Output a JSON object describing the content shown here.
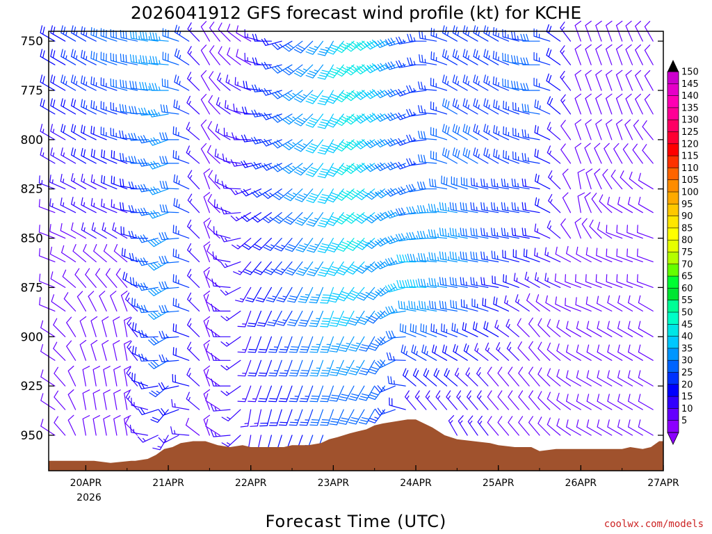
{
  "chart_data": {
    "type": "wind-barb-profile",
    "title": "2026041912 GFS forecast wind profile (kt) for KCHE",
    "xlabel": "Forecast Time (UTC)",
    "credit": "coolwx.com/models",
    "y_axis": {
      "ticks": [
        "750",
        "775",
        "800",
        "825",
        "850",
        "875",
        "900",
        "925",
        "950"
      ],
      "range_hpa": [
        745,
        968
      ]
    },
    "x_axis": {
      "ticks": [
        "20APR",
        "21APR",
        "22APR",
        "23APR",
        "24APR",
        "25APR",
        "26APR",
        "27APR"
      ],
      "year_label": "2026",
      "range_days": [
        19.55,
        27.0
      ]
    },
    "colorbar": {
      "levels": [
        "150",
        "145",
        "140",
        "135",
        "130",
        "125",
        "120",
        "115",
        "110",
        "105",
        "100",
        "95",
        "90",
        "85",
        "80",
        "75",
        "70",
        "65",
        "60",
        "55",
        "50",
        "45",
        "40",
        "35",
        "30",
        "25",
        "20",
        "15",
        "10",
        "5"
      ],
      "colors": [
        "#cc00cc",
        "#e600c8",
        "#ff00b4",
        "#ff0096",
        "#ff0064",
        "#ff0032",
        "#ff0000",
        "#ff3200",
        "#ff6400",
        "#ff8c00",
        "#ffaa00",
        "#ffc800",
        "#ffe600",
        "#ffff00",
        "#e6ff00",
        "#b4ff00",
        "#64ff00",
        "#00ff32",
        "#00e632",
        "#00ff96",
        "#00ffc8",
        "#00e6e6",
        "#00c8ff",
        "#0096ff",
        "#0064ff",
        "#0032ff",
        "#0000ff",
        "#3200ff",
        "#6400ff",
        "#8c00ff"
      ]
    },
    "terrain": {
      "color": "#a0522d",
      "profile": [
        [
          19.55,
          963
        ],
        [
          19.8,
          963
        ],
        [
          20.1,
          963
        ],
        [
          20.3,
          964
        ],
        [
          20.55,
          963
        ],
        [
          20.6,
          963
        ],
        [
          20.75,
          962
        ],
        [
          20.85,
          960
        ],
        [
          20.95,
          957
        ],
        [
          21.05,
          956
        ],
        [
          21.15,
          954
        ],
        [
          21.3,
          953
        ],
        [
          21.45,
          953
        ],
        [
          21.6,
          955
        ],
        [
          21.75,
          956
        ],
        [
          21.9,
          955
        ],
        [
          22.0,
          956
        ],
        [
          22.2,
          956
        ],
        [
          22.4,
          956
        ],
        [
          22.5,
          955
        ],
        [
          22.7,
          955
        ],
        [
          22.85,
          954
        ],
        [
          22.95,
          952
        ],
        [
          23.05,
          951
        ],
        [
          23.2,
          949
        ],
        [
          23.3,
          948
        ],
        [
          23.4,
          947
        ],
        [
          23.5,
          945
        ],
        [
          23.6,
          944
        ],
        [
          23.75,
          943
        ],
        [
          23.9,
          942
        ],
        [
          24.0,
          942
        ],
        [
          24.1,
          944
        ],
        [
          24.2,
          946
        ],
        [
          24.35,
          950
        ],
        [
          24.5,
          952
        ],
        [
          24.7,
          953
        ],
        [
          24.9,
          954
        ],
        [
          25.0,
          955
        ],
        [
          25.2,
          956
        ],
        [
          25.4,
          956
        ],
        [
          25.5,
          958
        ],
        [
          25.7,
          957
        ],
        [
          25.9,
          957
        ],
        [
          26.1,
          957
        ],
        [
          26.3,
          957
        ],
        [
          26.5,
          957
        ],
        [
          26.6,
          956
        ],
        [
          26.75,
          957
        ],
        [
          26.85,
          956
        ],
        [
          26.95,
          953
        ],
        [
          27.0,
          953
        ]
      ]
    },
    "wind": {
      "pressure_levels": [
        750,
        762,
        775,
        787,
        800,
        812,
        825,
        837,
        850,
        862,
        875,
        887,
        900,
        912,
        925,
        937,
        950
      ],
      "anchors": [
        {
          "t": 19.6,
          "dir": [
            300,
            300,
            300,
            300,
            300,
            300,
            290,
            290,
            290,
            290,
            290,
            290,
            300,
            300,
            300,
            300,
            300
          ],
          "spd": [
            20,
            20,
            20,
            18,
            15,
            15,
            15,
            12,
            12,
            12,
            12,
            12,
            12,
            10,
            10,
            10,
            10
          ]
        },
        {
          "t": 20.0,
          "dir": [
            300,
            300,
            300,
            300,
            300,
            300,
            300,
            300,
            300,
            310,
            320,
            330,
            340,
            340,
            350,
            350,
            350
          ],
          "spd": [
            25,
            25,
            25,
            22,
            20,
            18,
            16,
            15,
            12,
            12,
            12,
            12,
            12,
            12,
            10,
            10,
            10
          ]
        },
        {
          "t": 20.5,
          "dir": [
            285,
            285,
            285,
            285,
            285,
            290,
            290,
            290,
            300,
            310,
            320,
            340,
            350,
            350,
            350,
            350,
            350
          ],
          "spd": [
            30,
            30,
            28,
            26,
            24,
            20,
            18,
            16,
            15,
            12,
            12,
            10,
            10,
            10,
            10,
            10,
            10
          ]
        },
        {
          "t": 21.0,
          "dir": [
            275,
            275,
            270,
            260,
            250,
            250,
            250,
            250,
            240,
            240,
            240,
            240,
            240,
            240,
            230,
            220,
            210
          ],
          "spd": [
            35,
            35,
            35,
            35,
            35,
            35,
            35,
            35,
            35,
            35,
            35,
            35,
            30,
            30,
            25,
            20,
            15
          ]
        },
        {
          "t": 21.5,
          "dir": [
            330,
            330,
            330,
            330,
            330,
            330,
            340,
            340,
            340,
            340,
            340,
            340,
            340,
            340,
            340,
            340,
            340
          ],
          "spd": [
            10,
            10,
            10,
            10,
            10,
            10,
            10,
            10,
            10,
            10,
            10,
            10,
            10,
            10,
            10,
            10,
            10
          ]
        },
        {
          "t": 22.0,
          "dir": [
            300,
            300,
            290,
            280,
            270,
            260,
            250,
            240,
            230,
            220,
            210,
            200,
            200,
            200,
            200,
            190,
            190
          ],
          "spd": [
            10,
            12,
            15,
            15,
            15,
            15,
            15,
            15,
            15,
            15,
            15,
            15,
            15,
            15,
            15,
            15,
            15
          ]
        },
        {
          "t": 22.5,
          "dir": [
            240,
            240,
            240,
            240,
            240,
            240,
            230,
            230,
            220,
            220,
            210,
            210,
            200,
            200,
            200,
            200,
            200
          ],
          "spd": [
            25,
            28,
            30,
            30,
            30,
            30,
            30,
            28,
            26,
            25,
            25,
            25,
            25,
            25,
            22,
            20,
            20
          ]
        },
        {
          "t": 23.0,
          "dir": [
            210,
            210,
            210,
            210,
            210,
            210,
            210,
            210,
            210,
            210,
            200,
            200,
            200,
            200,
            200,
            200,
            200
          ],
          "spd": [
            35,
            40,
            40,
            40,
            40,
            40,
            40,
            40,
            40,
            40,
            40,
            38,
            36,
            35,
            32,
            30,
            28
          ]
        },
        {
          "t": 23.3,
          "dir": [
            230,
            230,
            230,
            230,
            230,
            230,
            230,
            230,
            220,
            220,
            220,
            210,
            210,
            210,
            210,
            210,
            210
          ],
          "spd": [
            48,
            48,
            46,
            45,
            45,
            45,
            45,
            45,
            45,
            42,
            40,
            38,
            36,
            34,
            32,
            30,
            30
          ]
        },
        {
          "t": 23.6,
          "dir": [
            240,
            240,
            240,
            240,
            240,
            240,
            230,
            230,
            230,
            230,
            220,
            220,
            210,
            210,
            210,
            210,
            210
          ],
          "spd": [
            40,
            40,
            40,
            40,
            38,
            36,
            35,
            35,
            35,
            35,
            34,
            32,
            30,
            30,
            28,
            28,
            28
          ]
        },
        {
          "t": 24.0,
          "dir": [
            260,
            260,
            250,
            250,
            250,
            250,
            250,
            260,
            260,
            270,
            270,
            280,
            290,
            300,
            310,
            320,
            330
          ],
          "spd": [
            25,
            25,
            25,
            25,
            25,
            25,
            30,
            32,
            35,
            38,
            40,
            35,
            30,
            25,
            20,
            15,
            12
          ]
        },
        {
          "t": 24.5,
          "dir": [
            300,
            300,
            300,
            300,
            300,
            300,
            290,
            280,
            280,
            280,
            280,
            280,
            290,
            300,
            310,
            320,
            330
          ],
          "spd": [
            25,
            25,
            25,
            28,
            30,
            30,
            32,
            34,
            35,
            35,
            32,
            30,
            25,
            20,
            18,
            16,
            15
          ]
        },
        {
          "t": 25.0,
          "dir": [
            300,
            300,
            300,
            300,
            300,
            300,
            280,
            280,
            280,
            280,
            280,
            290,
            300,
            310,
            320,
            320,
            320
          ],
          "spd": [
            25,
            25,
            25,
            25,
            25,
            25,
            25,
            25,
            25,
            25,
            22,
            20,
            18,
            15,
            12,
            12,
            12
          ]
        },
        {
          "t": 25.5,
          "dir": [
            270,
            270,
            270,
            280,
            280,
            280,
            280,
            280,
            280,
            290,
            300,
            310,
            320,
            320,
            320,
            320,
            320
          ],
          "spd": [
            28,
            30,
            30,
            28,
            25,
            25,
            22,
            22,
            20,
            18,
            15,
            12,
            10,
            10,
            10,
            10,
            10
          ]
        },
        {
          "t": 26.0,
          "dir": [
            340,
            340,
            340,
            340,
            340,
            340,
            350,
            350,
            340,
            300,
            290,
            290,
            300,
            300,
            300,
            300,
            300
          ],
          "spd": [
            10,
            10,
            10,
            10,
            8,
            8,
            8,
            8,
            8,
            10,
            10,
            10,
            10,
            10,
            10,
            10,
            10
          ]
        },
        {
          "t": 26.5,
          "dir": [
            340,
            340,
            340,
            340,
            340,
            330,
            320,
            300,
            290,
            290,
            290,
            300,
            300,
            300,
            300,
            300,
            300
          ],
          "spd": [
            10,
            10,
            10,
            10,
            10,
            10,
            10,
            10,
            12,
            12,
            12,
            12,
            12,
            12,
            12,
            12,
            12
          ]
        },
        {
          "t": 26.9,
          "dir": [
            330,
            330,
            330,
            330,
            320,
            320,
            300,
            300,
            290,
            290,
            290,
            300,
            300,
            300,
            300,
            300,
            300
          ],
          "spd": [
            10,
            10,
            10,
            10,
            10,
            10,
            12,
            12,
            12,
            12,
            12,
            12,
            12,
            12,
            12,
            12,
            12
          ]
        }
      ]
    }
  }
}
